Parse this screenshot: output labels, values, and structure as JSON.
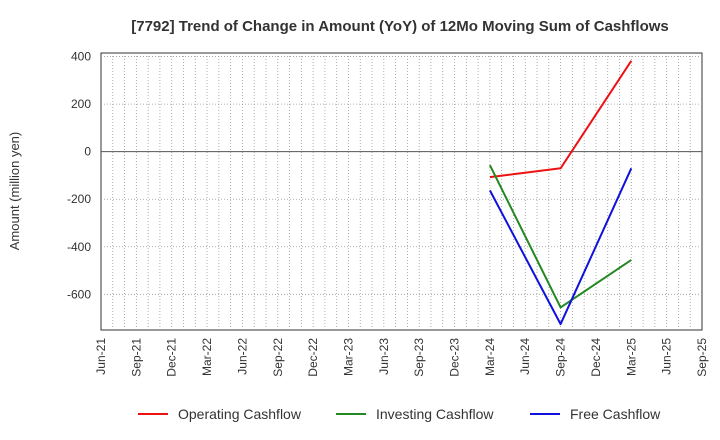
{
  "chart_data": {
    "type": "line",
    "title": "[7792]  Trend of Change in Amount (YoY) of 12Mo Moving Sum of Cashflows",
    "ylabel": "Amount (million yen)",
    "xlabel": "",
    "x_ticks": [
      "Jun-21",
      "Sep-21",
      "Dec-21",
      "Mar-22",
      "Jun-22",
      "Sep-22",
      "Dec-22",
      "Mar-23",
      "Jun-23",
      "Sep-23",
      "Dec-23",
      "Mar-24",
      "Jun-24",
      "Sep-24",
      "Dec-24",
      "Mar-25",
      "Jun-25",
      "Sep-25"
    ],
    "y_ticks": [
      400,
      200,
      0,
      -200,
      -400,
      -600
    ],
    "ylim": [
      -750,
      415
    ],
    "grid": true,
    "legend_position": "bottom",
    "series": [
      {
        "name": "Operating Cashflow",
        "color": "#ee1111",
        "points": [
          {
            "x": "Mar-24",
            "y": -107
          },
          {
            "x": "Sep-24",
            "y": -70
          },
          {
            "x": "Mar-25",
            "y": 382
          }
        ]
      },
      {
        "name": "Investing Cashflow",
        "color": "#228822",
        "points": [
          {
            "x": "Mar-24",
            "y": -57
          },
          {
            "x": "Sep-24",
            "y": -655
          },
          {
            "x": "Mar-25",
            "y": -455
          }
        ]
      },
      {
        "name": "Free Cashflow",
        "color": "#1111dd",
        "points": [
          {
            "x": "Mar-24",
            "y": -163
          },
          {
            "x": "Sep-24",
            "y": -725
          },
          {
            "x": "Mar-25",
            "y": -70
          }
        ]
      }
    ]
  }
}
